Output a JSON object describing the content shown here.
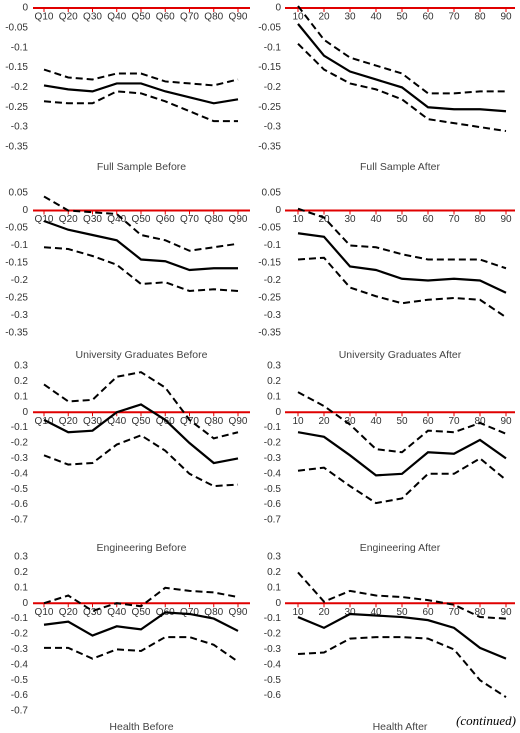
{
  "chart_data": [
    {
      "type": "line",
      "title": "Full Sample Before",
      "categories": [
        "Q10",
        "Q20",
        "Q30",
        "Q40",
        "Q50",
        "Q60",
        "Q70",
        "Q80",
        "Q90"
      ],
      "series": [
        {
          "color": "#000000",
          "style": "solid",
          "values": [
            -0.195,
            -0.205,
            -0.21,
            -0.19,
            -0.19,
            -0.21,
            -0.225,
            -0.24,
            -0.23
          ]
        },
        {
          "color": "#000000",
          "style": "dashed",
          "values": [
            -0.155,
            -0.175,
            -0.18,
            -0.165,
            -0.165,
            -0.185,
            -0.19,
            -0.195,
            -0.18
          ]
        },
        {
          "color": "#000000",
          "style": "dashed",
          "values": [
            -0.235,
            -0.24,
            -0.24,
            -0.21,
            -0.215,
            -0.235,
            -0.26,
            -0.285,
            -0.285
          ]
        }
      ],
      "ylim": [
        -0.35,
        0
      ],
      "yticks": [
        0,
        -0.05,
        -0.1,
        -0.15,
        -0.2,
        -0.25,
        -0.3,
        -0.35
      ],
      "axis_color": "#e00000"
    },
    {
      "type": "line",
      "title": "Full Sample After",
      "categories": [
        "10",
        "20",
        "30",
        "40",
        "50",
        "60",
        "70",
        "80",
        "90"
      ],
      "series": [
        {
          "color": "#000000",
          "style": "solid",
          "values": [
            -0.04,
            -0.12,
            -0.16,
            -0.18,
            -0.2,
            -0.25,
            -0.255,
            -0.255,
            -0.26
          ]
        },
        {
          "color": "#000000",
          "style": "dashed",
          "values": [
            0.005,
            -0.08,
            -0.125,
            -0.145,
            -0.165,
            -0.215,
            -0.215,
            -0.21,
            -0.21
          ]
        },
        {
          "color": "#000000",
          "style": "dashed",
          "values": [
            -0.09,
            -0.155,
            -0.19,
            -0.205,
            -0.23,
            -0.28,
            -0.29,
            -0.3,
            -0.31
          ]
        }
      ],
      "ylim": [
        -0.35,
        0
      ],
      "yticks": [
        0,
        -0.05,
        -0.1,
        -0.15,
        -0.2,
        -0.25,
        -0.3,
        -0.35
      ],
      "axis_color": "#e00000"
    },
    {
      "type": "line",
      "title": "University Graduates Before",
      "categories": [
        "Q10",
        "Q20",
        "Q30",
        "Q40",
        "Q50",
        "Q60",
        "Q70",
        "Q80",
        "Q90"
      ],
      "series": [
        {
          "color": "#000000",
          "style": "solid",
          "values": [
            -0.03,
            -0.055,
            -0.07,
            -0.085,
            -0.14,
            -0.145,
            -0.17,
            -0.165,
            -0.165
          ]
        },
        {
          "color": "#000000",
          "style": "dashed",
          "values": [
            0.04,
            0.0,
            -0.005,
            -0.01,
            -0.07,
            -0.085,
            -0.115,
            -0.105,
            -0.095
          ]
        },
        {
          "color": "#000000",
          "style": "dashed",
          "values": [
            -0.105,
            -0.11,
            -0.13,
            -0.155,
            -0.21,
            -0.205,
            -0.23,
            -0.225,
            -0.23
          ]
        }
      ],
      "ylim": [
        -0.35,
        0.05
      ],
      "yticks": [
        0.05,
        0,
        -0.05,
        -0.1,
        -0.15,
        -0.2,
        -0.25,
        -0.3,
        -0.35
      ],
      "axis_color": "#e00000"
    },
    {
      "type": "line",
      "title": "University Graduates After",
      "categories": [
        "10",
        "20",
        "30",
        "40",
        "50",
        "60",
        "70",
        "80",
        "90"
      ],
      "series": [
        {
          "color": "#000000",
          "style": "solid",
          "values": [
            -0.065,
            -0.075,
            -0.16,
            -0.17,
            -0.195,
            -0.2,
            -0.195,
            -0.2,
            -0.235
          ]
        },
        {
          "color": "#000000",
          "style": "dashed",
          "values": [
            0.005,
            -0.02,
            -0.1,
            -0.105,
            -0.125,
            -0.14,
            -0.14,
            -0.14,
            -0.165
          ]
        },
        {
          "color": "#000000",
          "style": "dashed",
          "values": [
            -0.14,
            -0.135,
            -0.22,
            -0.245,
            -0.265,
            -0.255,
            -0.25,
            -0.255,
            -0.305
          ]
        }
      ],
      "ylim": [
        -0.35,
        0.05
      ],
      "yticks": [
        0.05,
        0,
        -0.05,
        -0.1,
        -0.15,
        -0.2,
        -0.25,
        -0.3,
        -0.35
      ],
      "axis_color": "#e00000"
    },
    {
      "type": "line",
      "title": "Engineering Before",
      "categories": [
        "Q10",
        "Q20",
        "Q30",
        "Q40",
        "Q50",
        "Q60",
        "Q70",
        "Q80",
        "Q90"
      ],
      "series": [
        {
          "color": "#000000",
          "style": "solid",
          "values": [
            -0.05,
            -0.13,
            -0.12,
            0.0,
            0.05,
            -0.05,
            -0.2,
            -0.33,
            -0.3
          ]
        },
        {
          "color": "#000000",
          "style": "dashed",
          "values": [
            0.18,
            0.07,
            0.08,
            0.23,
            0.26,
            0.16,
            -0.05,
            -0.17,
            -0.13
          ]
        },
        {
          "color": "#000000",
          "style": "dashed",
          "values": [
            -0.28,
            -0.34,
            -0.33,
            -0.21,
            -0.15,
            -0.25,
            -0.4,
            -0.48,
            -0.47
          ]
        }
      ],
      "ylim": [
        -0.7,
        0.3
      ],
      "yticks": [
        0.3,
        0.2,
        0.1,
        0,
        -0.1,
        -0.2,
        -0.3,
        -0.4,
        -0.5,
        -0.6,
        -0.7
      ],
      "axis_color": "#e00000"
    },
    {
      "type": "line",
      "title": "Engineering After",
      "categories": [
        "10",
        "20",
        "30",
        "40",
        "50",
        "60",
        "70",
        "80",
        "90"
      ],
      "series": [
        {
          "color": "#000000",
          "style": "solid",
          "values": [
            -0.13,
            -0.16,
            -0.28,
            -0.41,
            -0.4,
            -0.26,
            -0.27,
            -0.18,
            -0.3
          ]
        },
        {
          "color": "#000000",
          "style": "dashed",
          "values": [
            0.13,
            0.04,
            -0.08,
            -0.24,
            -0.26,
            -0.12,
            -0.13,
            -0.07,
            -0.14
          ]
        },
        {
          "color": "#000000",
          "style": "dashed",
          "values": [
            -0.38,
            -0.36,
            -0.48,
            -0.59,
            -0.56,
            -0.4,
            -0.4,
            -0.3,
            -0.44
          ]
        }
      ],
      "ylim": [
        -0.7,
        0.3
      ],
      "yticks": [
        0.3,
        0.2,
        0.1,
        0,
        -0.1,
        -0.2,
        -0.3,
        -0.4,
        -0.5,
        -0.6,
        -0.7
      ],
      "axis_color": "#e00000"
    },
    {
      "type": "line",
      "title": "Health Before",
      "categories": [
        "Q10",
        "Q20",
        "Q30",
        "Q40",
        "Q50",
        "Q60",
        "Q70",
        "Q80",
        "Q90"
      ],
      "series": [
        {
          "color": "#000000",
          "style": "solid",
          "values": [
            -0.14,
            -0.12,
            -0.21,
            -0.15,
            -0.17,
            -0.06,
            -0.07,
            -0.1,
            -0.18
          ]
        },
        {
          "color": "#000000",
          "style": "dashed",
          "values": [
            0.0,
            0.05,
            -0.05,
            0.0,
            -0.02,
            0.1,
            0.08,
            0.07,
            0.04
          ]
        },
        {
          "color": "#000000",
          "style": "dashed",
          "values": [
            -0.29,
            -0.29,
            -0.36,
            -0.3,
            -0.31,
            -0.22,
            -0.22,
            -0.27,
            -0.38
          ]
        }
      ],
      "ylim": [
        -0.7,
        0.3
      ],
      "yticks": [
        0.3,
        0.2,
        0.1,
        0,
        -0.1,
        -0.2,
        -0.3,
        -0.4,
        -0.5,
        -0.6,
        -0.7
      ],
      "axis_color": "#e00000"
    },
    {
      "type": "line",
      "title": "Health After",
      "categories": [
        "10",
        "20",
        "30",
        "40",
        "50",
        "60",
        "70",
        "80",
        "90"
      ],
      "series": [
        {
          "color": "#000000",
          "style": "solid",
          "values": [
            -0.09,
            -0.16,
            -0.07,
            -0.08,
            -0.09,
            -0.11,
            -0.16,
            -0.29,
            -0.36
          ]
        },
        {
          "color": "#000000",
          "style": "dashed",
          "values": [
            0.2,
            0.01,
            0.08,
            0.05,
            0.04,
            0.02,
            -0.01,
            -0.09,
            -0.1
          ]
        },
        {
          "color": "#000000",
          "style": "dashed",
          "values": [
            -0.33,
            -0.32,
            -0.23,
            -0.22,
            -0.22,
            -0.23,
            -0.3,
            -0.5,
            -0.61
          ]
        }
      ],
      "ylim": [
        -0.6,
        0.3
      ],
      "yticks": [
        0.3,
        0.2,
        0.1,
        0,
        -0.1,
        -0.2,
        -0.3,
        -0.4,
        -0.5,
        -0.6
      ],
      "axis_color": "#e00000"
    }
  ],
  "note": "(continued)"
}
